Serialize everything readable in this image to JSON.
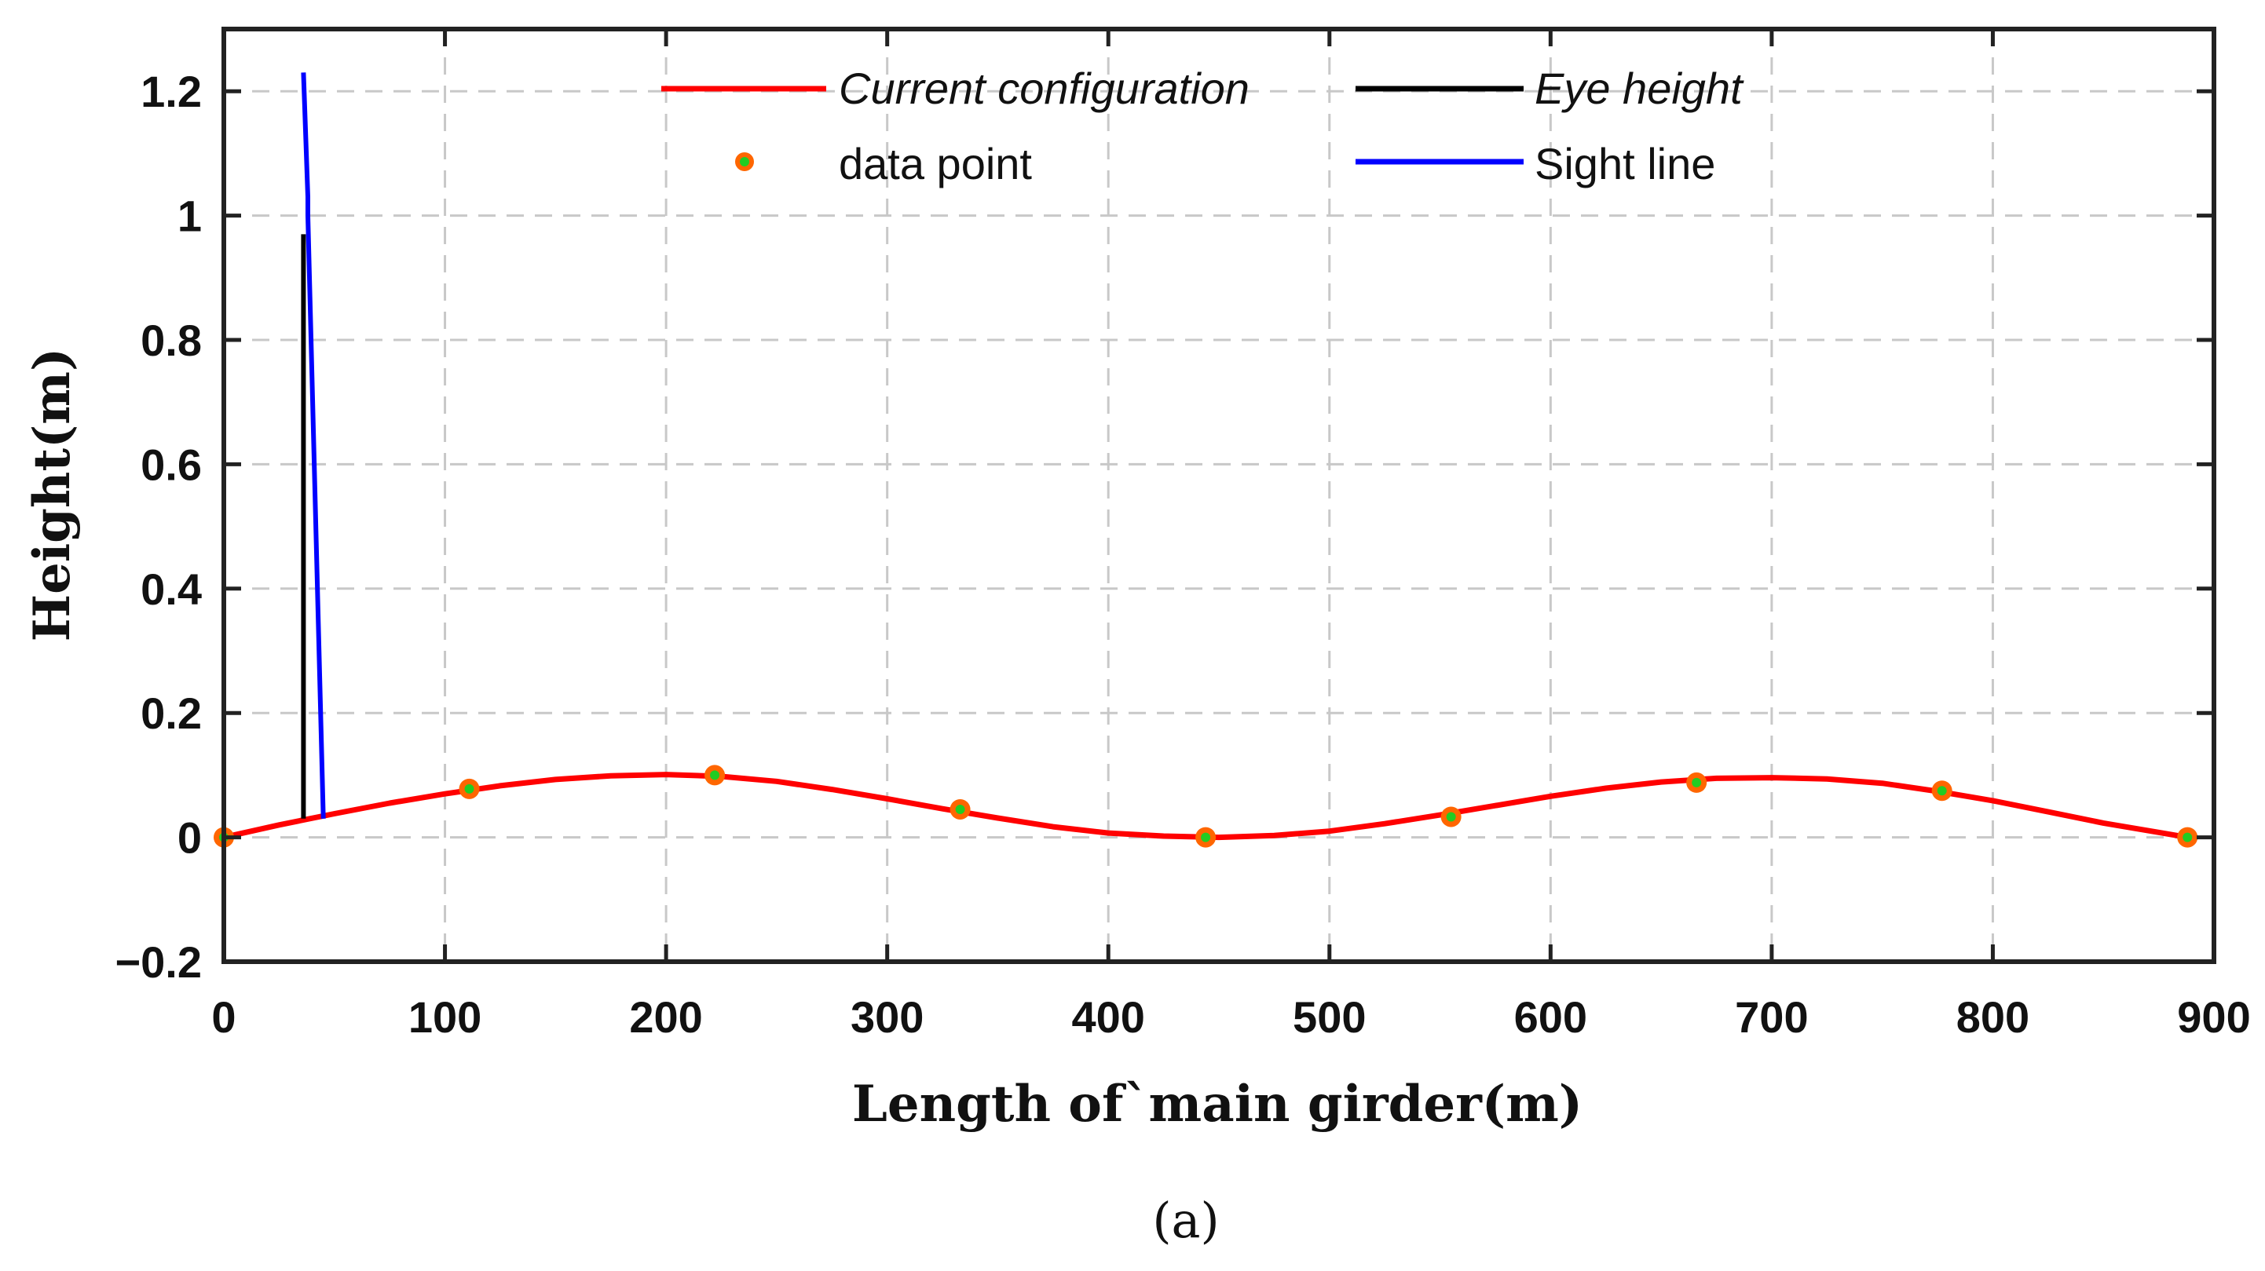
{
  "chart_data": {
    "type": "line",
    "title": "",
    "xlabel": "Length of`main girder(m)",
    "ylabel": "Height(m)",
    "xlim": [
      0,
      900
    ],
    "ylim": [
      -0.2,
      1.3
    ],
    "xticks": [
      0,
      100,
      200,
      300,
      400,
      500,
      600,
      700,
      800,
      900
    ],
    "xtick_labels": [
      "0",
      "100",
      "200",
      "300",
      "400",
      "500",
      "600",
      "700",
      "800",
      "900"
    ],
    "yticks": [
      -0.2,
      0,
      0.2,
      0.4,
      0.6,
      0.8,
      1,
      1.2
    ],
    "ytick_labels": [
      "−0.2",
      "0",
      "0.2",
      "0.4",
      "0.6",
      "0.8",
      "1",
      "1.2"
    ],
    "grid": true,
    "legend_position": "top-center",
    "series": [
      {
        "name": "Current configuration",
        "type": "line",
        "color": "#ff0000",
        "x": [
          0,
          25,
          50,
          75,
          100,
          125,
          150,
          175,
          200,
          225,
          250,
          275,
          300,
          325,
          350,
          375,
          400,
          425,
          450,
          475,
          500,
          525,
          550,
          575,
          600,
          625,
          650,
          675,
          700,
          725,
          750,
          775,
          800,
          825,
          850,
          875,
          888
        ],
        "y": [
          0.0,
          0.02,
          0.038,
          0.055,
          0.07,
          0.083,
          0.093,
          0.099,
          0.101,
          0.098,
          0.09,
          0.077,
          0.062,
          0.046,
          0.031,
          0.017,
          0.007,
          0.002,
          0.0,
          0.003,
          0.01,
          0.022,
          0.036,
          0.051,
          0.066,
          0.079,
          0.089,
          0.095,
          0.096,
          0.094,
          0.087,
          0.074,
          0.059,
          0.041,
          0.023,
          0.008,
          0.0
        ]
      },
      {
        "name": "data point",
        "type": "scatter",
        "color": "#ff6600",
        "inner_color": "#22cc22",
        "x": [
          0,
          111,
          222,
          333,
          444,
          555,
          666,
          777,
          888
        ],
        "y": [
          0.0,
          0.078,
          0.1,
          0.045,
          0.0,
          0.033,
          0.088,
          0.075,
          0.0
        ]
      },
      {
        "name": "Eye height",
        "type": "line",
        "color": "#000000",
        "x": [
          36,
          36
        ],
        "y": [
          0.03,
          0.97
        ]
      },
      {
        "name": "Sight line",
        "type": "line",
        "color": "#0000ff",
        "x": [
          36,
          38,
          38,
          45
        ],
        "y": [
          1.23,
          1.03,
          1.0,
          0.03
        ]
      }
    ],
    "caption": "(a)"
  }
}
